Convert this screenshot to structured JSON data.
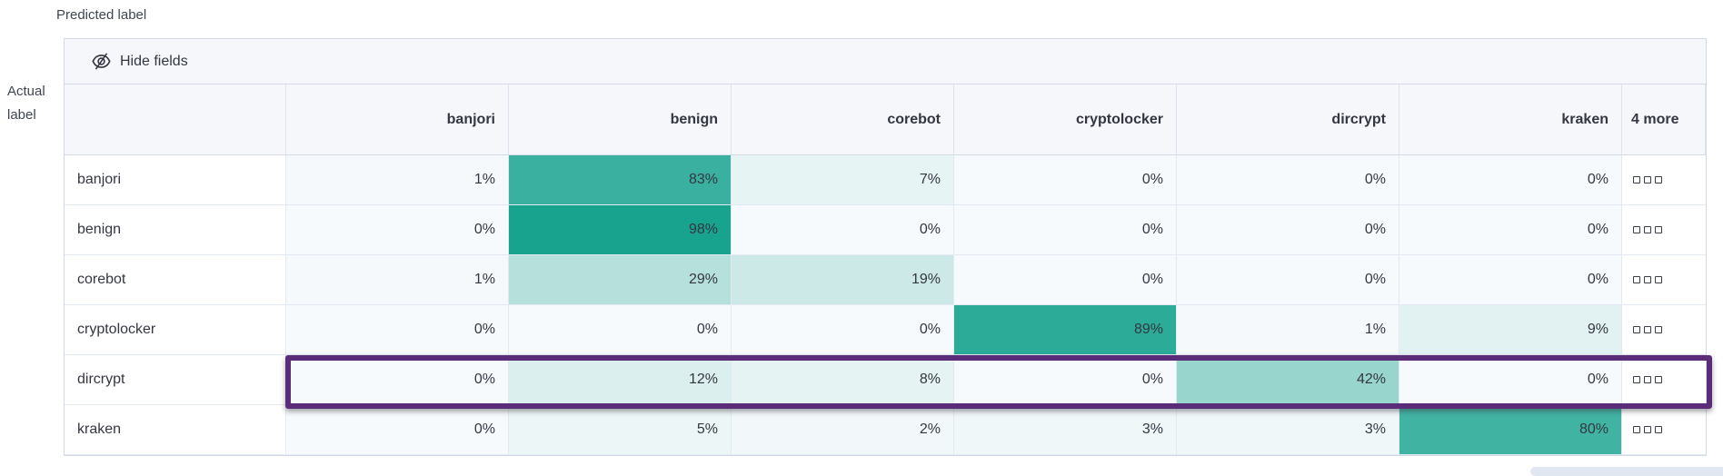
{
  "axes": {
    "predicted": "Predicted label",
    "actual_line1": "Actual",
    "actual_line2": "label"
  },
  "toolbar": {
    "hide_fields_label": "Hide fields",
    "hide_fields_icon": "eye-closed-icon"
  },
  "chart_data": {
    "type": "heatmap",
    "columns": [
      "banjori",
      "benign",
      "corebot",
      "cryptolocker",
      "dircrypt",
      "kraken"
    ],
    "rows": [
      "banjori",
      "benign",
      "corebot",
      "cryptolocker",
      "dircrypt",
      "kraken"
    ],
    "values_percent": [
      [
        1,
        83,
        7,
        0,
        0,
        0
      ],
      [
        0,
        98,
        0,
        0,
        0,
        0
      ],
      [
        1,
        29,
        19,
        0,
        0,
        0
      ],
      [
        0,
        0,
        0,
        89,
        1,
        9
      ],
      [
        0,
        12,
        8,
        0,
        42,
        0
      ],
      [
        0,
        5,
        2,
        3,
        3,
        80
      ]
    ],
    "value_suffix": "%",
    "extra_columns_label": "4 more",
    "row_actions_icon": "boxes-horizontal-icon",
    "colors": {
      "scale_min": "#f7fafc",
      "scale_max": "#13a18d",
      "text": "#343741",
      "highlight_border": "#5b2c77"
    },
    "highlight": {
      "row": "dircrypt",
      "row_index": 4
    },
    "legend": "off",
    "grid": "on"
  }
}
